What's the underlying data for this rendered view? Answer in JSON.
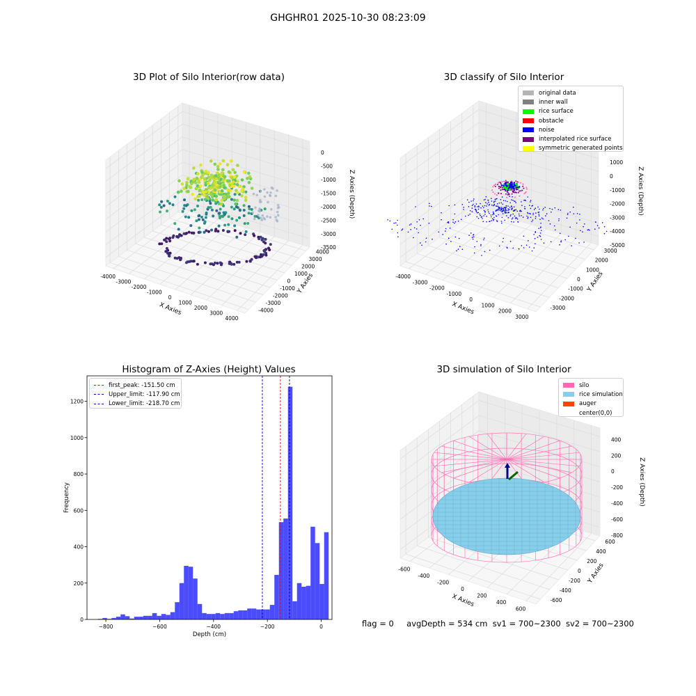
{
  "figure": {
    "title": "GHGHR01 2025-10-30 08:23:09",
    "footer": {
      "flag": "flag = 0",
      "avg_depth": "avgDepth = 534 cm",
      "sv1": "sv1 = 700~2300",
      "sv2": "sv2 = 700~2300"
    }
  },
  "chart_data": [
    {
      "id": "raw",
      "type": "scatter",
      "projection": "3d",
      "title": "3D Plot of Silo Interior(row data)",
      "xlabel": "X Axies",
      "ylabel": "Y Axies",
      "zlabel": "Z Axies (Depth)",
      "x_ticks": [
        "-4000",
        "-3000",
        "-2000",
        "-1000",
        "0",
        "1000",
        "2000",
        "3000",
        "4000"
      ],
      "y_ticks": [
        "-4000",
        "-3000",
        "-2000",
        "-1000",
        "0",
        "1000",
        "2000",
        "3000",
        "4000"
      ],
      "z_ticks": [
        "0",
        "-500",
        "-1000",
        "-1500",
        "-2000",
        "-2500",
        "-3000",
        "-3500"
      ],
      "colormap": "viridis"
    },
    {
      "id": "classify",
      "type": "scatter",
      "projection": "3d",
      "title": "3D classify of Silo Interior",
      "xlabel": "X Axies",
      "ylabel": "Y Axies",
      "zlabel": "Z Axies (Depth)",
      "x_ticks": [
        "-4000",
        "-3000",
        "-2000",
        "-1000",
        "0",
        "1000",
        "2000",
        "3000"
      ],
      "y_ticks": [
        "-3000",
        "-2000",
        "-1000",
        "0",
        "1000",
        "2000",
        "3000"
      ],
      "z_ticks": [
        "2000",
        "1000",
        "0",
        "-1000",
        "-2000",
        "-3000",
        "-4000",
        "-5000"
      ],
      "z_tick_partial": "00",
      "legend": [
        {
          "label": "original data",
          "color": "#b4b4b4"
        },
        {
          "label": "inner wall",
          "color": "#808080"
        },
        {
          "label": "rice surface",
          "color": "#00ff00"
        },
        {
          "label": "obstacle",
          "color": "#ff0000"
        },
        {
          "label": "noise",
          "color": "#0000ff"
        },
        {
          "label": "interpolated rice surface",
          "color": "#800080"
        },
        {
          "label": "symmetric generated points",
          "color": "#ffff00"
        }
      ]
    },
    {
      "id": "hist",
      "type": "bar",
      "title": "Histogram of Z-Axies (Height) Values",
      "xlabel": "Depth (cm)",
      "ylabel": "Frequency",
      "xlim": [
        -870,
        40
      ],
      "ylim": [
        0,
        1340
      ],
      "x_ticks": [
        -800,
        -600,
        -400,
        -200,
        0
      ],
      "y_ticks": [
        0,
        200,
        400,
        600,
        800,
        1000,
        1200
      ],
      "bar_color": "#0000ff",
      "bins_start": -846,
      "bin_width": 16.8,
      "values": [
        0,
        3,
        8,
        3,
        8,
        15,
        28,
        18,
        5,
        15,
        15,
        20,
        20,
        35,
        20,
        30,
        25,
        40,
        95,
        200,
        295,
        290,
        225,
        85,
        35,
        30,
        30,
        35,
        30,
        35,
        35,
        45,
        50,
        50,
        60,
        60,
        55,
        55,
        55,
        80,
        245,
        535,
        555,
        1280,
        100,
        200,
        180,
        185,
        510,
        420,
        195,
        480
      ],
      "lines": [
        {
          "label": "first_peak: -151.50 cm",
          "x": -151.5,
          "color": "#ff0000"
        },
        {
          "label": "Upper_limit: -117.90 cm",
          "x": -117.9,
          "color": "#0000aa"
        },
        {
          "label": "Lower_limit: -218.70 cm",
          "x": -218.7,
          "color": "#0000aa"
        }
      ]
    },
    {
      "id": "sim",
      "type": "scatter",
      "projection": "3d",
      "title": "3D simulation of Silo Interior",
      "xlabel": "X Axies",
      "ylabel": "Y Axies",
      "zlabel": "Z Axies (Depth)",
      "x_ticks": [
        "-600",
        "-400",
        "-200",
        "0",
        "200",
        "400",
        "600"
      ],
      "y_ticks": [
        "-600",
        "-400",
        "-200",
        "0",
        "200",
        "400",
        "600"
      ],
      "z_ticks": [
        "400",
        "200",
        "0",
        "-200",
        "-400",
        "-600",
        "-800"
      ],
      "legend": [
        {
          "label": "silo",
          "color": "#ff69b4"
        },
        {
          "label": "rice simulation",
          "color": "#87ceeb"
        },
        {
          "label": "auger",
          "color": "#ff4500"
        },
        {
          "label": "center(0,0)",
          "color": "#ffffff"
        }
      ]
    }
  ]
}
